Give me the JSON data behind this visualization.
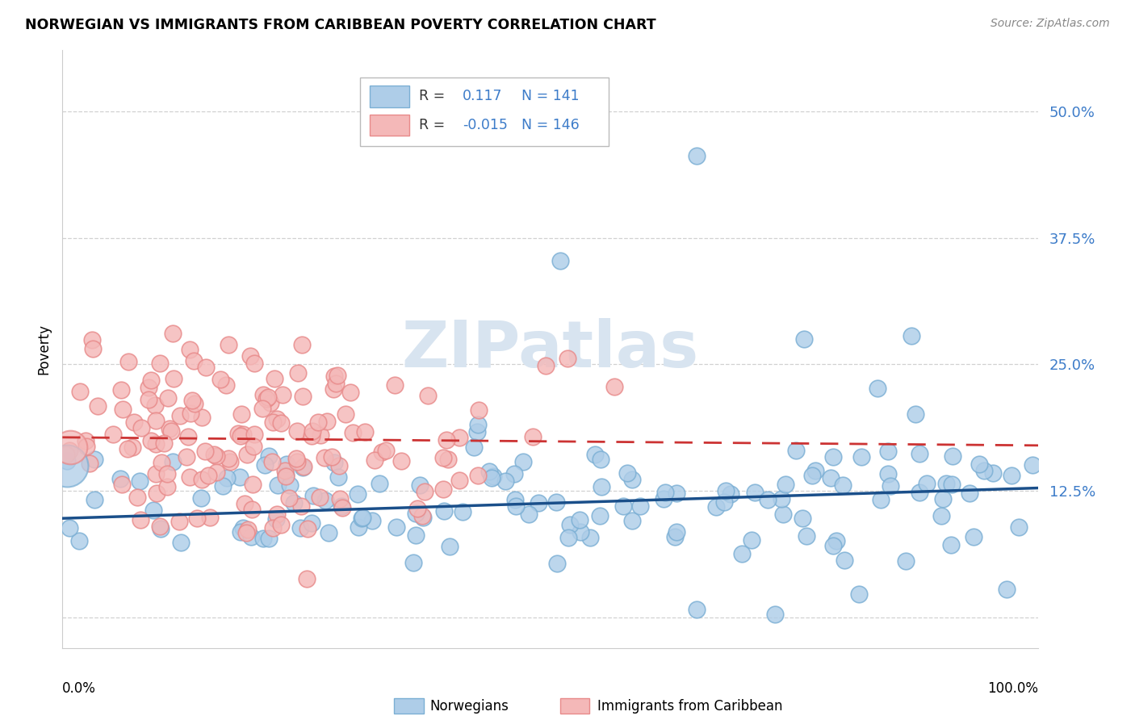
{
  "title": "NORWEGIAN VS IMMIGRANTS FROM CARIBBEAN POVERTY CORRELATION CHART",
  "source": "Source: ZipAtlas.com",
  "ylabel": "Poverty",
  "yticks": [
    0.0,
    0.125,
    0.25,
    0.375,
    0.5
  ],
  "ytick_labels": [
    "",
    "12.5%",
    "25.0%",
    "37.5%",
    "50.0%"
  ],
  "xlim": [
    0.0,
    1.0
  ],
  "ylim": [
    -0.03,
    0.56
  ],
  "legend_r1": "R =",
  "legend_v1": "0.117",
  "legend_n1_label": "N =",
  "legend_n1_val": "141",
  "legend_r2": "R =",
  "legend_v2": "-0.015",
  "legend_n2_label": "N =",
  "legend_n2_val": "146",
  "color_norwegian_edge": "#7bafd4",
  "color_norwegian_fill": "#aecde8",
  "color_caribbean_edge": "#e88a8a",
  "color_caribbean_fill": "#f4b8b8",
  "color_norwegian_line": "#1a4f8a",
  "color_caribbean_line": "#cc3333",
  "color_text_blue": "#3d7cc9",
  "color_text_dark": "#333333",
  "watermark_color": "#d8e4f0",
  "background_color": "#ffffff",
  "grid_color": "#cccccc",
  "norwegian_intercept": 0.098,
  "norwegian_slope": 0.03,
  "caribbean_intercept": 0.178,
  "caribbean_slope": -0.008
}
